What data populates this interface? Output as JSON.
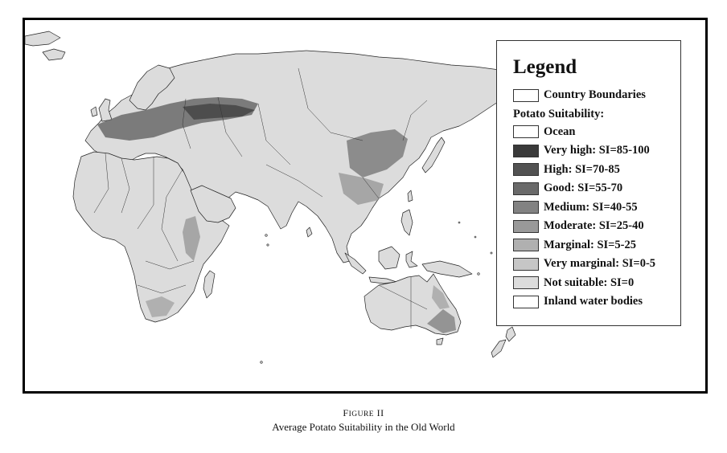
{
  "legend": {
    "title": "Legend",
    "boundaries": {
      "label": "Country Boundaries",
      "color": "#ffffff"
    },
    "heading": "Potato Suitability:",
    "classes": [
      {
        "label": "Ocean",
        "color": "#ffffff"
      },
      {
        "label": "Very high: SI=85-100",
        "color": "#3a3a3a"
      },
      {
        "label": "High: SI=70-85",
        "color": "#525252"
      },
      {
        "label": "Good: SI=55-70",
        "color": "#6a6a6a"
      },
      {
        "label": "Medium: SI=40-55",
        "color": "#828282"
      },
      {
        "label": "Moderate: SI=25-40",
        "color": "#999999"
      },
      {
        "label": "Marginal: SI=5-25",
        "color": "#b0b0b0"
      },
      {
        "label": "Very marginal: SI=0-5",
        "color": "#c6c6c6"
      },
      {
        "label": "Not suitable: SI=0",
        "color": "#dcdcdc"
      },
      {
        "label": "Inland water bodies",
        "color": "#ffffff"
      }
    ]
  },
  "caption": {
    "figure_first": "F",
    "figure_rest": "IGURE",
    "figure_num": "II",
    "title": "Average Potato Suitability in the Old World"
  }
}
